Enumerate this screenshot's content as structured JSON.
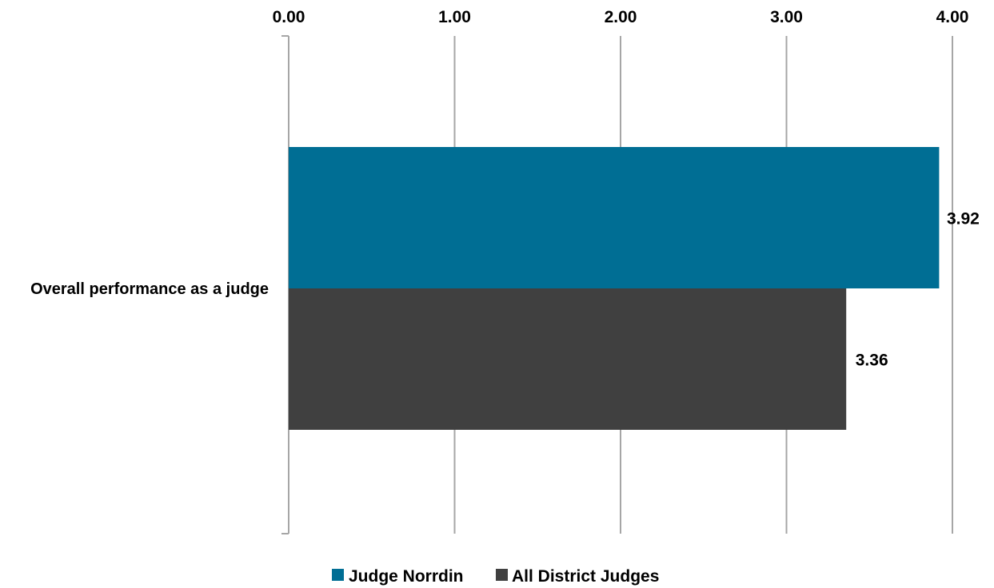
{
  "chart_data": {
    "type": "bar",
    "orientation": "horizontal",
    "categories": [
      "Overall performance as a judge"
    ],
    "series": [
      {
        "name": "Judge Norrdin",
        "values": [
          3.92
        ],
        "color": "#006E94"
      },
      {
        "name": "All District Judges",
        "values": [
          3.36
        ],
        "color": "#404040"
      }
    ],
    "xlim": [
      0,
      4
    ],
    "x_ticks": [
      "0.00",
      "1.00",
      "2.00",
      "3.00",
      "4.00"
    ],
    "x_axis_position": "top",
    "grid": true,
    "gridline_color": "#A6A6A6",
    "legend_position": "bottom"
  }
}
